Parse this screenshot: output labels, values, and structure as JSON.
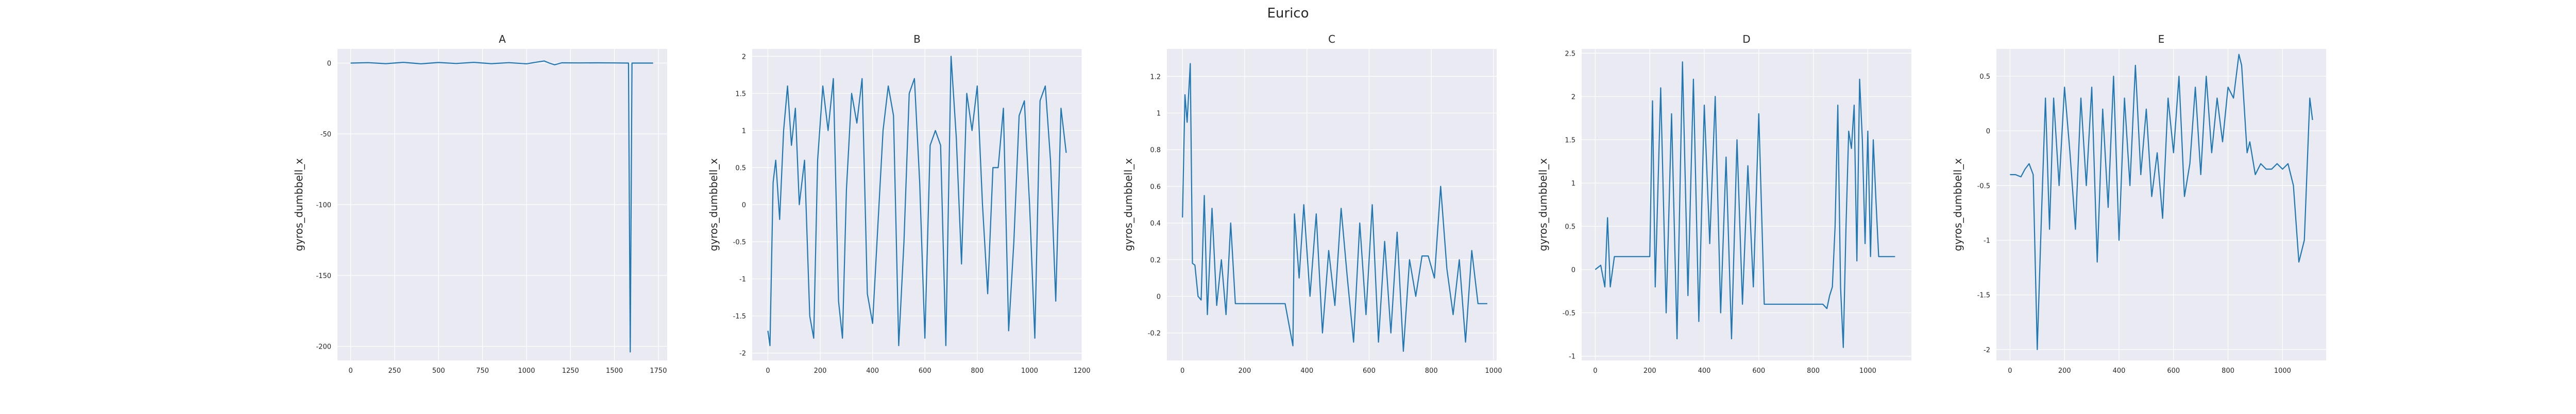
{
  "figure": {
    "title": "Eurico"
  },
  "chart_data": [
    {
      "type": "line",
      "title": "A",
      "ylabel": "gyros_dumbbell_x",
      "xlim": [
        -75,
        1800
      ],
      "ylim": [
        -210,
        10
      ],
      "xticks": [
        0,
        250,
        500,
        750,
        1000,
        1250,
        1500,
        1750
      ],
      "yticks": [
        0,
        -50,
        -100,
        -150,
        -200
      ],
      "grid": true,
      "series": [
        {
          "x": [
            0,
            100,
            200,
            300,
            400,
            500,
            600,
            700,
            800,
            900,
            1000,
            1050,
            1100,
            1130,
            1160,
            1200,
            1300,
            1400,
            1500,
            1580,
            1590,
            1600,
            1700,
            1720
          ],
          "values": [
            0,
            0.3,
            -0.4,
            0.5,
            -0.5,
            0.4,
            -0.3,
            0.5,
            -0.4,
            0.3,
            -0.5,
            0.5,
            1.5,
            0,
            -1.2,
            0.2,
            0.1,
            0.2,
            0.1,
            0,
            -204,
            0,
            0,
            0
          ]
        }
      ]
    },
    {
      "type": "line",
      "title": "B",
      "ylabel": "gyros_dumbbell_x",
      "xlim": [
        -60,
        1200
      ],
      "ylim": [
        -2.1,
        2.1
      ],
      "xticks": [
        0,
        200,
        400,
        600,
        800,
        1000,
        1200
      ],
      "yticks": [
        -2.0,
        -1.5,
        -1.0,
        -0.5,
        0.0,
        0.5,
        1.0,
        1.5,
        2.0
      ],
      "grid": true,
      "series": [
        {
          "x": [
            0,
            8,
            20,
            30,
            45,
            60,
            75,
            90,
            105,
            120,
            140,
            160,
            175,
            190,
            210,
            230,
            250,
            270,
            285,
            300,
            320,
            340,
            360,
            380,
            400,
            420,
            440,
            460,
            480,
            500,
            520,
            540,
            560,
            580,
            600,
            620,
            640,
            660,
            680,
            700,
            720,
            740,
            760,
            780,
            800,
            820,
            840,
            860,
            880,
            900,
            920,
            940,
            960,
            980,
            1000,
            1020,
            1040,
            1060,
            1080,
            1100,
            1120,
            1140
          ],
          "values": [
            -1.7,
            -1.9,
            0.3,
            0.6,
            -0.2,
            1.0,
            1.6,
            0.8,
            1.3,
            0.0,
            0.6,
            -1.5,
            -1.8,
            0.6,
            1.6,
            1.0,
            1.7,
            -1.3,
            -1.8,
            0.2,
            1.5,
            1.1,
            1.7,
            -1.2,
            -1.6,
            -0.3,
            1.0,
            1.6,
            1.2,
            -1.9,
            -0.5,
            1.5,
            1.7,
            0.3,
            -1.8,
            0.8,
            1.0,
            0.8,
            -1.9,
            2.0,
            0.9,
            -0.8,
            1.5,
            1.0,
            1.6,
            0.0,
            -1.2,
            0.5,
            0.5,
            1.3,
            -1.7,
            -0.5,
            1.2,
            1.4,
            0.0,
            -1.8,
            1.4,
            1.6,
            0.6,
            -1.3,
            1.3,
            0.7
          ]
        }
      ]
    },
    {
      "type": "line",
      "title": "C",
      "ylabel": "gyros_dumbbell_x",
      "xlim": [
        -50,
        1010
      ],
      "ylim": [
        -0.35,
        1.35
      ],
      "xticks": [
        0,
        200,
        400,
        600,
        800,
        1000
      ],
      "yticks": [
        -0.2,
        0.0,
        0.2,
        0.4,
        0.6,
        0.8,
        1.0,
        1.2
      ],
      "grid": true,
      "series": [
        {
          "x": [
            0,
            8,
            15,
            25,
            32,
            40,
            50,
            60,
            70,
            80,
            95,
            110,
            125,
            140,
            155,
            170,
            200,
            260,
            330,
            355,
            360,
            375,
            390,
            410,
            430,
            450,
            470,
            490,
            510,
            530,
            550,
            570,
            590,
            610,
            630,
            650,
            670,
            690,
            710,
            730,
            750,
            770,
            790,
            810,
            830,
            850,
            870,
            890,
            910,
            930,
            950,
            980
          ],
          "values": [
            0.43,
            1.1,
            0.95,
            1.27,
            0.18,
            0.17,
            0.0,
            -0.02,
            0.55,
            -0.1,
            0.48,
            -0.05,
            0.2,
            -0.1,
            0.4,
            -0.04,
            -0.04,
            -0.04,
            -0.04,
            -0.27,
            0.45,
            0.1,
            0.5,
            0.0,
            0.45,
            -0.2,
            0.25,
            -0.05,
            0.48,
            0.1,
            -0.25,
            0.4,
            -0.1,
            0.5,
            -0.25,
            0.3,
            -0.2,
            0.35,
            -0.3,
            0.2,
            0.0,
            0.22,
            0.22,
            0.1,
            0.6,
            0.15,
            -0.1,
            0.2,
            -0.25,
            0.25,
            -0.04,
            -0.04
          ]
        }
      ]
    },
    {
      "type": "line",
      "title": "D",
      "ylabel": "gyros_dumbbell_x",
      "xlim": [
        -50,
        1160
      ],
      "ylim": [
        -1.05,
        2.55
      ],
      "xticks": [
        0,
        200,
        400,
        600,
        800,
        1000
      ],
      "yticks": [
        -1.0,
        -0.5,
        0.0,
        0.5,
        1.0,
        1.5,
        2.0,
        2.5
      ],
      "grid": true,
      "series": [
        {
          "x": [
            0,
            20,
            35,
            45,
            55,
            70,
            200,
            210,
            220,
            240,
            260,
            280,
            300,
            320,
            340,
            360,
            380,
            400,
            420,
            440,
            460,
            480,
            500,
            520,
            540,
            560,
            580,
            600,
            620,
            640,
            660,
            700,
            750,
            800,
            835,
            850,
            860,
            870,
            880,
            890,
            900,
            910,
            920,
            930,
            940,
            950,
            960,
            970,
            980,
            990,
            1000,
            1010,
            1020,
            1030,
            1040,
            1060,
            1100
          ],
          "values": [
            0.0,
            0.05,
            -0.2,
            0.6,
            -0.2,
            0.15,
            0.15,
            1.95,
            -0.2,
            2.1,
            -0.5,
            1.8,
            -0.8,
            2.4,
            -0.3,
            2.2,
            -0.6,
            1.9,
            0.3,
            2.0,
            -0.5,
            1.3,
            -0.8,
            1.5,
            -0.4,
            1.2,
            -0.2,
            1.8,
            -0.4,
            -0.4,
            -0.4,
            -0.4,
            -0.4,
            -0.4,
            -0.4,
            -0.45,
            -0.3,
            -0.2,
            0.5,
            1.9,
            -0.2,
            -0.9,
            0.5,
            1.6,
            1.4,
            1.9,
            0.1,
            2.2,
            1.5,
            0.3,
            1.6,
            0.15,
            1.5,
            0.8,
            0.15,
            0.15,
            0.15
          ]
        }
      ]
    },
    {
      "type": "line",
      "title": "E",
      "ylabel": "gyros_dumbbell_x",
      "xlim": [
        -50,
        1160
      ],
      "ylim": [
        -2.1,
        0.75
      ],
      "xticks": [
        0,
        200,
        400,
        600,
        800,
        1000
      ],
      "yticks": [
        -2.0,
        -1.5,
        -1.0,
        -0.5,
        0.0,
        0.5
      ],
      "grid": true,
      "series": [
        {
          "x": [
            0,
            20,
            40,
            55,
            70,
            85,
            100,
            115,
            130,
            145,
            160,
            180,
            200,
            220,
            240,
            260,
            280,
            300,
            320,
            340,
            360,
            380,
            400,
            420,
            440,
            460,
            480,
            500,
            520,
            540,
            560,
            580,
            600,
            620,
            640,
            660,
            680,
            700,
            720,
            740,
            760,
            780,
            800,
            820,
            840,
            850,
            860,
            870,
            880,
            900,
            920,
            940,
            960,
            980,
            1000,
            1020,
            1040,
            1060,
            1080,
            1100,
            1110
          ],
          "values": [
            -0.4,
            -0.4,
            -0.42,
            -0.35,
            -0.3,
            -0.4,
            -2.0,
            -0.8,
            0.3,
            -0.9,
            0.3,
            -0.5,
            0.4,
            -0.2,
            -0.9,
            0.3,
            -0.5,
            0.4,
            -1.2,
            0.2,
            -0.7,
            0.5,
            -1.0,
            0.3,
            -0.5,
            0.6,
            -0.4,
            0.2,
            -0.6,
            -0.2,
            -0.8,
            0.3,
            -0.2,
            0.5,
            -0.6,
            -0.3,
            0.4,
            -0.4,
            0.5,
            -0.2,
            0.3,
            -0.1,
            0.4,
            0.3,
            0.7,
            0.6,
            0.2,
            -0.2,
            -0.1,
            -0.4,
            -0.3,
            -0.35,
            -0.35,
            -0.3,
            -0.35,
            -0.3,
            -0.5,
            -1.2,
            -1.0,
            0.3,
            0.1
          ]
        }
      ]
    }
  ]
}
